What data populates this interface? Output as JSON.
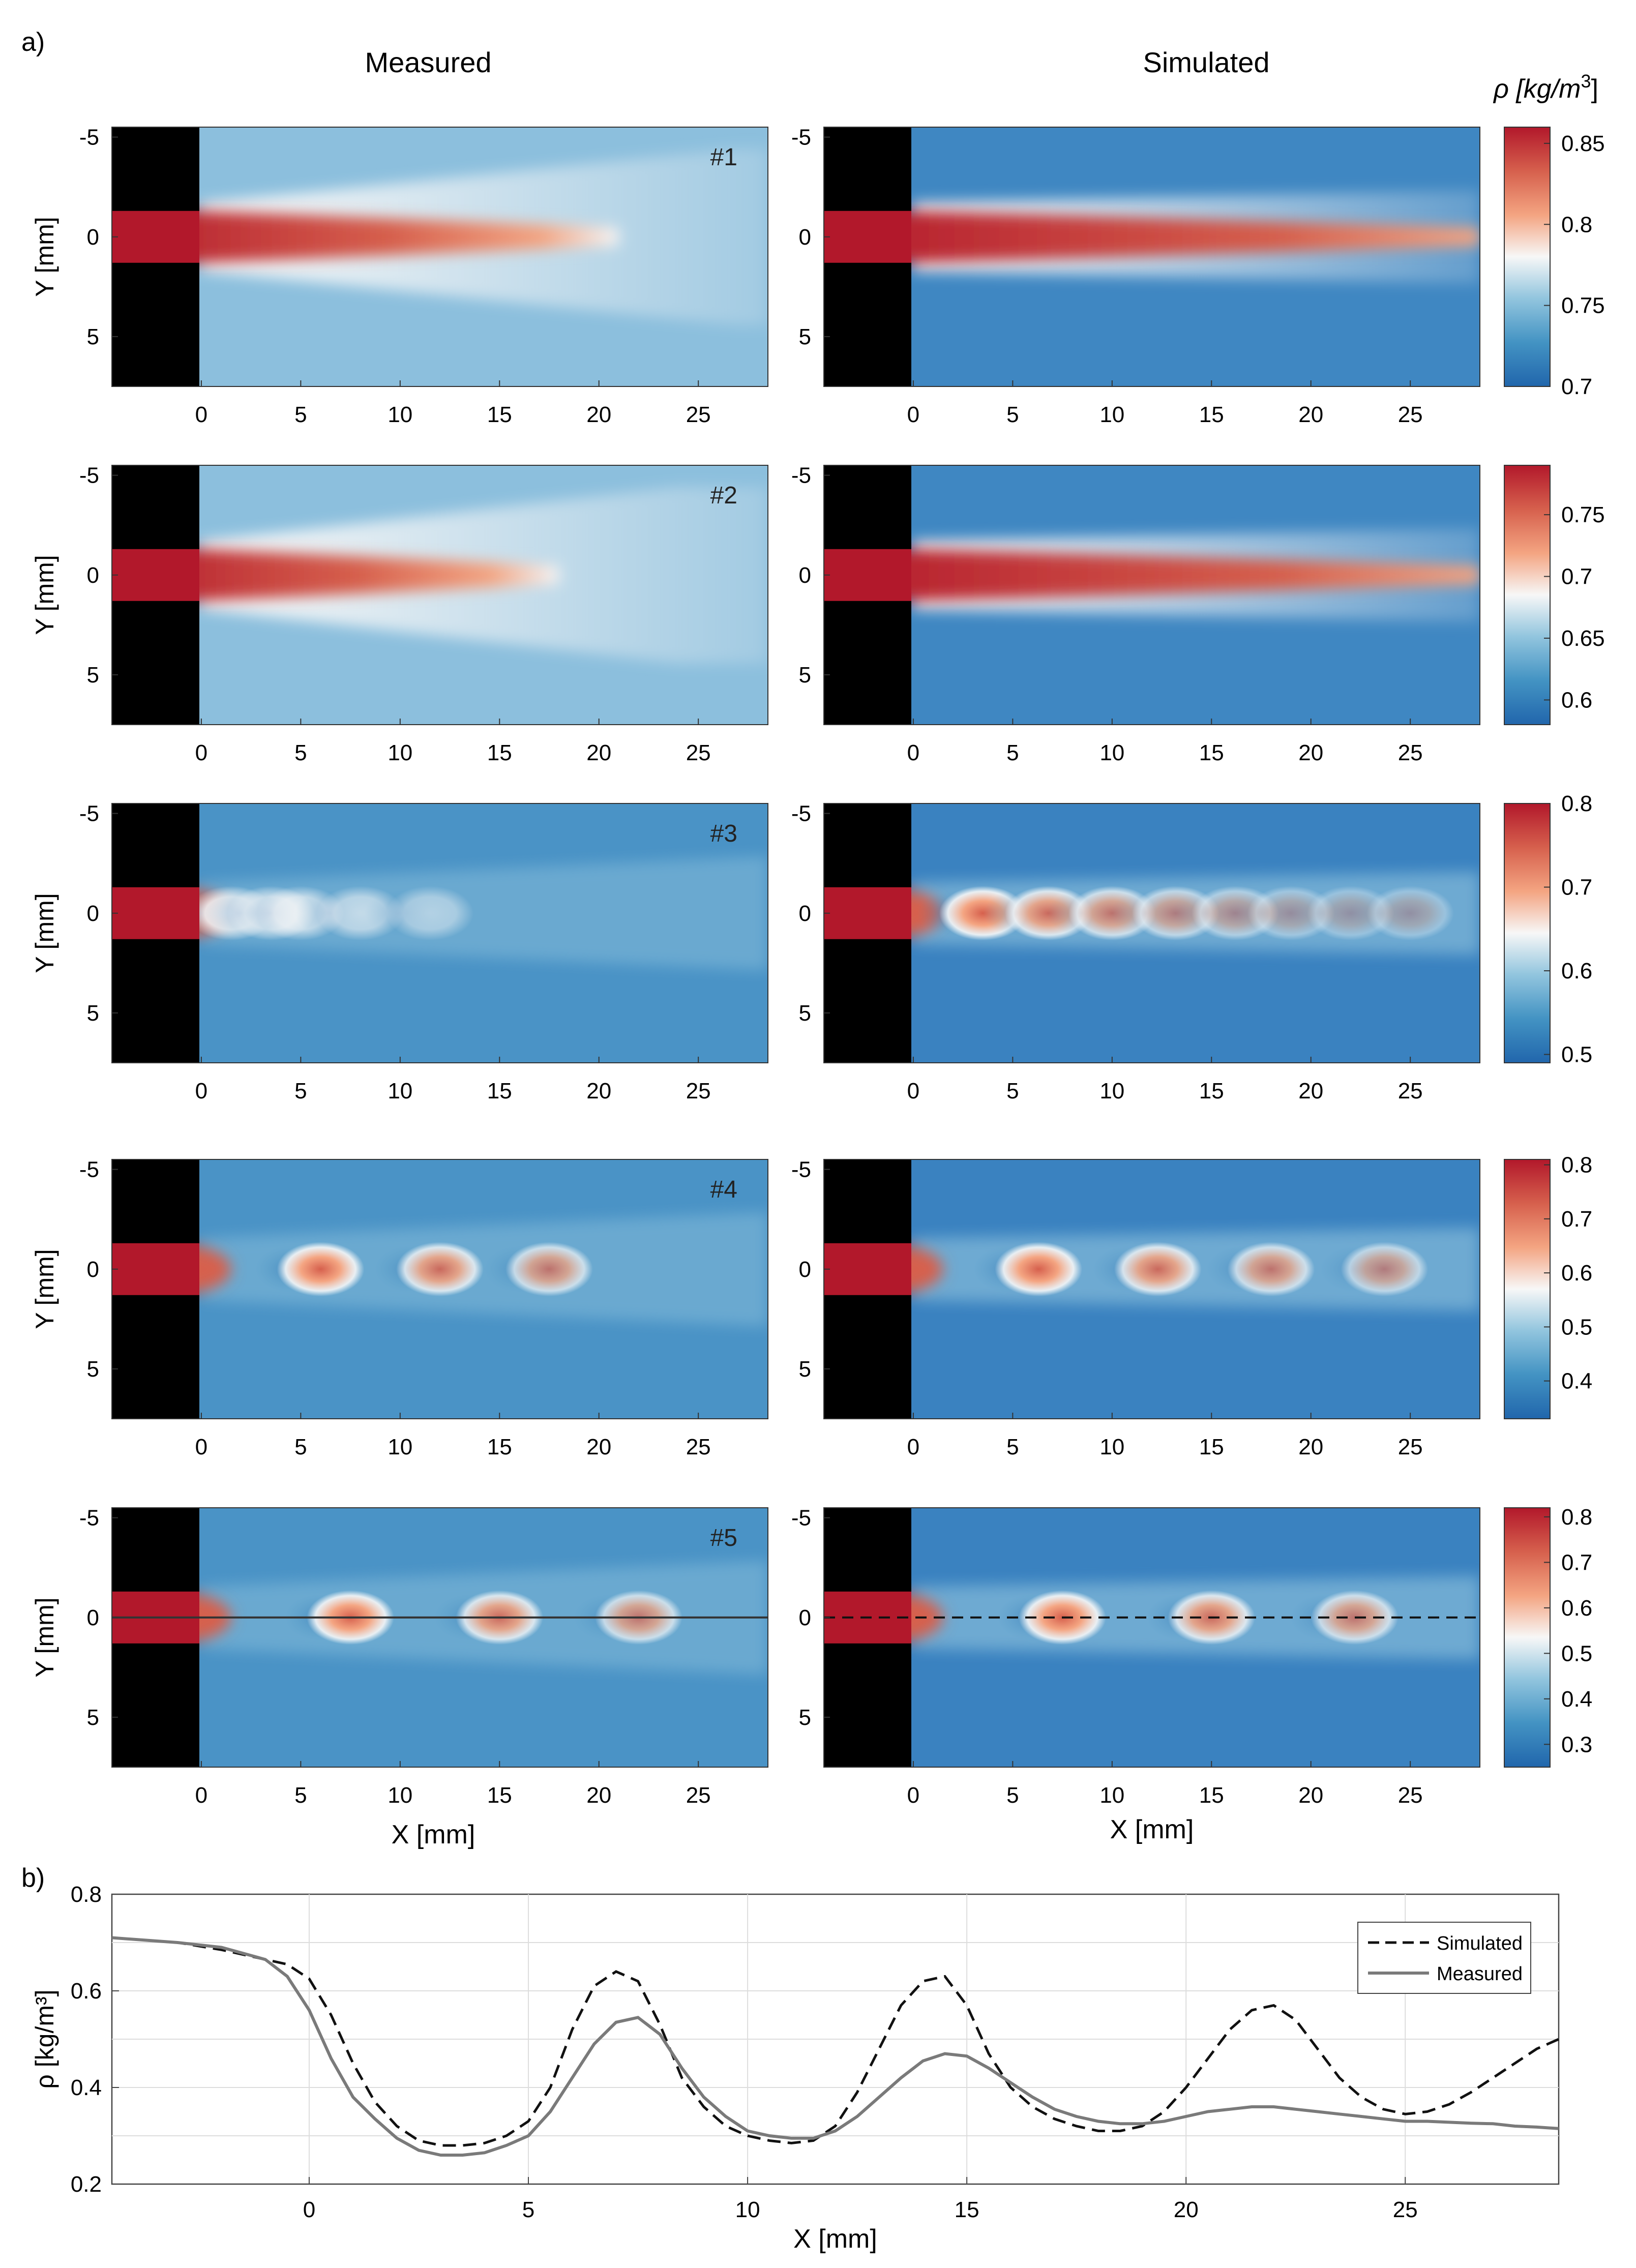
{
  "figure": {
    "panel_a_label": "a)",
    "panel_b_label": "b)",
    "col_titles": [
      "Measured",
      "Simulated"
    ],
    "colorbar_title_prefix": "ρ [kg/m",
    "colorbar_title_exp": "3",
    "colorbar_title_suffix": "]",
    "y_axis_label": "Y [mm]",
    "x_axis_label": "X [mm]"
  },
  "colors": {
    "dark_red": "#b2182b",
    "red": "#d6604d",
    "light_red": "#f4a582",
    "white": "#f7f7f7",
    "light_blue": "#92c5de",
    "blue": "#4393c3",
    "dark_blue": "#2166ac",
    "nozzle": "#000000",
    "sim_line": "#111111",
    "meas_line": "#7a7a7a"
  },
  "chart_data": [
    {
      "type": "heatmap",
      "id": "case-1",
      "case_label": "#1",
      "xlabel": "",
      "ylabel": "Y [mm]",
      "xlim": [
        -4.5,
        28.5
      ],
      "ylim": [
        -5.5,
        7.5
      ],
      "xticks": [
        0,
        5,
        10,
        15,
        20,
        25
      ],
      "yticks": [
        -5,
        0,
        5
      ],
      "colorbar": {
        "range": [
          0.7,
          0.86
        ],
        "ticks": [
          0.7,
          0.75,
          0.8,
          0.85
        ]
      },
      "measured": {
        "pattern": "continuous core",
        "core_length_mm": 21,
        "ambient": 0.75
      },
      "simulated": {
        "pattern": "continuous core",
        "core_length_mm": 28.5,
        "ambient": 0.72
      }
    },
    {
      "type": "heatmap",
      "id": "case-2",
      "case_label": "#2",
      "xlabel": "",
      "ylabel": "Y [mm]",
      "xlim": [
        -4.5,
        28.5
      ],
      "ylim": [
        -5.5,
        7.5
      ],
      "xticks": [
        0,
        5,
        10,
        15,
        20,
        25
      ],
      "yticks": [
        -5,
        0,
        5
      ],
      "colorbar": {
        "range": [
          0.58,
          0.79
        ],
        "ticks": [
          0.6,
          0.65,
          0.7,
          0.75
        ]
      },
      "measured": {
        "pattern": "continuous core",
        "core_length_mm": 18,
        "ambient": 0.64
      },
      "simulated": {
        "pattern": "continuous core",
        "core_length_mm": 28.5,
        "ambient": 0.62
      }
    },
    {
      "type": "heatmap",
      "id": "case-3",
      "case_label": "#3",
      "xlabel": "",
      "ylabel": "Y [mm]",
      "xlim": [
        -4.5,
        28.5
      ],
      "ylim": [
        -5.5,
        7.5
      ],
      "xticks": [
        0,
        5,
        10,
        15,
        20,
        25
      ],
      "yticks": [
        -5,
        0,
        5
      ],
      "colorbar": {
        "range": [
          0.49,
          0.8
        ],
        "ticks": [
          0.5,
          0.6,
          0.7,
          0.8
        ]
      },
      "measured": {
        "pattern": "weak cells",
        "cell_x_mm": [
          1.5,
          3.5,
          5.0,
          8.0,
          11.5
        ]
      },
      "simulated": {
        "pattern": "shock cells",
        "cell_x_mm": [
          3.5,
          6.8,
          10.0,
          13.2,
          16.2,
          19.0,
          22.0,
          25.0
        ]
      }
    },
    {
      "type": "heatmap",
      "id": "case-4",
      "case_label": "#4",
      "xlabel": "",
      "ylabel": "Y [mm]",
      "xlim": [
        -4.5,
        28.5
      ],
      "ylim": [
        -5.5,
        7.5
      ],
      "xticks": [
        0,
        5,
        10,
        15,
        20,
        25
      ],
      "yticks": [
        -5,
        0,
        5
      ],
      "colorbar": {
        "range": [
          0.33,
          0.81
        ],
        "ticks": [
          0.4,
          0.5,
          0.6,
          0.7,
          0.8
        ]
      },
      "measured": {
        "pattern": "shock cells",
        "cell_x_mm": [
          6.0,
          12.0,
          17.5
        ]
      },
      "simulated": {
        "pattern": "shock cells",
        "cell_x_mm": [
          6.3,
          12.3,
          18.0,
          23.7
        ]
      }
    },
    {
      "type": "heatmap",
      "id": "case-5",
      "case_label": "#5",
      "xlabel": "X [mm]",
      "ylabel": "Y [mm]",
      "xlim": [
        -4.5,
        28.5
      ],
      "ylim": [
        -5.5,
        7.5
      ],
      "xticks": [
        0,
        5,
        10,
        15,
        20,
        25
      ],
      "yticks": [
        -5,
        0,
        5
      ],
      "colorbar": {
        "range": [
          0.25,
          0.82
        ],
        "ticks": [
          0.3,
          0.4,
          0.5,
          0.6,
          0.7,
          0.8
        ]
      },
      "measured": {
        "pattern": "shock cells",
        "cell_x_mm": [
          7.5,
          15.0,
          22.0
        ]
      },
      "simulated": {
        "pattern": "shock cells",
        "cell_x_mm": [
          7.5,
          15.0,
          22.2
        ]
      }
    },
    {
      "type": "line",
      "id": "profile",
      "title": "",
      "xlabel": "X [mm]",
      "ylabel": "ρ [kg/m³]",
      "xlim": [
        -4.5,
        28.5
      ],
      "ylim": [
        0.2,
        0.8
      ],
      "xticks": [
        0,
        5,
        10,
        15,
        20,
        25
      ],
      "yticks": [
        0.2,
        0.4,
        0.6,
        0.8
      ],
      "grid": true,
      "legend": "top-right",
      "series": [
        {
          "name": "Simulated",
          "style": "dashed",
          "x": [
            -4.5,
            -3,
            -2,
            -1,
            -0.5,
            0,
            0.5,
            1,
            1.5,
            2,
            2.5,
            3,
            3.5,
            4,
            4.5,
            5,
            5.5,
            6,
            6.5,
            7,
            7.5,
            8,
            8.5,
            9,
            9.5,
            10,
            10.5,
            11,
            11.5,
            12,
            12.5,
            13,
            13.5,
            14,
            14.5,
            15,
            15.5,
            16,
            16.5,
            17,
            17.5,
            18,
            18.5,
            19,
            19.5,
            20,
            20.5,
            21,
            21.5,
            22,
            22.5,
            23,
            23.5,
            24,
            24.5,
            25,
            25.5,
            26,
            26.5,
            27,
            27.5,
            28,
            28.5
          ],
          "values": [
            0.71,
            0.7,
            0.685,
            0.665,
            0.655,
            0.625,
            0.55,
            0.45,
            0.37,
            0.32,
            0.29,
            0.28,
            0.28,
            0.285,
            0.3,
            0.33,
            0.4,
            0.52,
            0.61,
            0.64,
            0.62,
            0.53,
            0.42,
            0.36,
            0.32,
            0.3,
            0.29,
            0.285,
            0.29,
            0.32,
            0.39,
            0.48,
            0.57,
            0.62,
            0.63,
            0.57,
            0.47,
            0.4,
            0.36,
            0.335,
            0.32,
            0.31,
            0.31,
            0.32,
            0.35,
            0.4,
            0.46,
            0.52,
            0.56,
            0.57,
            0.54,
            0.48,
            0.42,
            0.38,
            0.355,
            0.345,
            0.35,
            0.365,
            0.39,
            0.42,
            0.45,
            0.48,
            0.5
          ]
        },
        {
          "name": "Measured",
          "style": "solid",
          "x": [
            -4.5,
            -3,
            -2,
            -1,
            -0.5,
            0,
            0.5,
            1,
            1.5,
            2,
            2.5,
            3,
            3.5,
            4,
            4.5,
            5,
            5.5,
            6,
            6.5,
            7,
            7.5,
            8,
            8.5,
            9,
            9.5,
            10,
            10.5,
            11,
            11.5,
            12,
            12.5,
            13,
            13.5,
            14,
            14.5,
            15,
            15.5,
            16,
            16.5,
            17,
            17.5,
            18,
            18.5,
            19,
            19.5,
            20,
            20.5,
            21,
            21.5,
            22,
            22.5,
            23,
            23.5,
            24,
            24.5,
            25,
            25.5,
            26,
            26.5,
            27,
            27.5,
            28,
            28.5
          ],
          "values": [
            0.71,
            0.7,
            0.69,
            0.665,
            0.63,
            0.56,
            0.46,
            0.38,
            0.335,
            0.295,
            0.27,
            0.26,
            0.26,
            0.265,
            0.28,
            0.3,
            0.35,
            0.42,
            0.49,
            0.535,
            0.545,
            0.51,
            0.44,
            0.38,
            0.34,
            0.31,
            0.3,
            0.295,
            0.295,
            0.31,
            0.34,
            0.38,
            0.42,
            0.455,
            0.47,
            0.465,
            0.44,
            0.41,
            0.38,
            0.355,
            0.34,
            0.33,
            0.325,
            0.325,
            0.33,
            0.34,
            0.35,
            0.355,
            0.36,
            0.36,
            0.355,
            0.35,
            0.345,
            0.34,
            0.335,
            0.33,
            0.33,
            0.328,
            0.326,
            0.325,
            0.32,
            0.318,
            0.315
          ]
        }
      ]
    }
  ]
}
